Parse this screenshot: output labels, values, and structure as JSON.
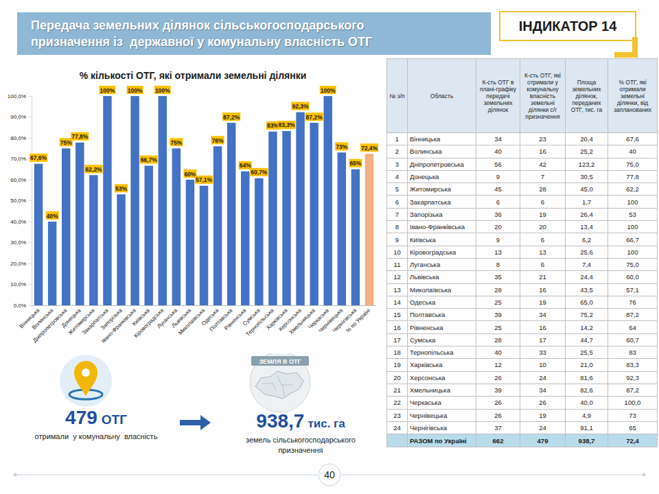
{
  "header": {
    "title": [
      "Передача земельних ділянок сільськогосподарського",
      "призначення із  державної у комунальну власність ОТГ"
    ],
    "indicator": "ІНДИКАТОР 14"
  },
  "chart_data": {
    "type": "bar",
    "title": "% кількості ОТГ, які отримали земельні ділянки",
    "categories": [
      "Вінницька",
      "Волинська",
      "Дніпропетровська",
      "Донецька",
      "Житомирська",
      "Закарпатська",
      "Запорізька",
      "Івано-Франківська",
      "Київська",
      "Кіровоградська",
      "Луганська",
      "Львівська",
      "Миколаївська",
      "Одеська",
      "Полтавська",
      "Рівненська",
      "Сумська",
      "Тернопільська",
      "Харківська",
      "Херсонська",
      "Хмельницька",
      "Черкаська",
      "Чернівецька",
      "Чернігівська",
      "% по Україні"
    ],
    "values": [
      67.6,
      40,
      75,
      77.8,
      62.2,
      100,
      53,
      100,
      66.7,
      100,
      75,
      60,
      57.1,
      76,
      87.2,
      64,
      60.7,
      83,
      83.3,
      92.3,
      87.2,
      100,
      73,
      65,
      72.4
    ],
    "value_labels": [
      "67,6%",
      "40%",
      "75%",
      "77,8%",
      "62,2%",
      "100%",
      "53%",
      "100%",
      "66,7%",
      "100%",
      "75%",
      "60%",
      "57,1%",
      "76%",
      "87,2%",
      "64%",
      "60,7%",
      "83%",
      "83,3%",
      "92,3%",
      "87,2%",
      "100%",
      "73%",
      "65%",
      "72,4%"
    ],
    "colors": [
      "#4472c4",
      "#4472c4",
      "#4472c4",
      "#4472c4",
      "#4472c4",
      "#4472c4",
      "#4472c4",
      "#4472c4",
      "#4472c4",
      "#4472c4",
      "#4472c4",
      "#4472c4",
      "#4472c4",
      "#4472c4",
      "#4472c4",
      "#4472c4",
      "#4472c4",
      "#4472c4",
      "#4472c4",
      "#4472c4",
      "#4472c4",
      "#4472c4",
      "#4472c4",
      "#4472c4",
      "#f4b183"
    ],
    "ylim": [
      0,
      100
    ],
    "yticks": [
      {
        "value": 0,
        "label": "0,0%"
      },
      {
        "value": 10,
        "label": "10,0%"
      },
      {
        "value": 20,
        "label": "20,0%"
      },
      {
        "value": 30,
        "label": "30,0%"
      },
      {
        "value": 40,
        "label": "40,0%"
      },
      {
        "value": 50,
        "label": "50,0%"
      },
      {
        "value": 60,
        "label": "60,0%"
      },
      {
        "value": 70,
        "label": "70,0%"
      },
      {
        "value": 80,
        "label": "80,0%"
      },
      {
        "value": 90,
        "label": "90,0%"
      },
      {
        "value": 100,
        "label": "100,0%"
      }
    ],
    "grid": false,
    "data_labels": true
  },
  "table": {
    "columns": [
      "№ з/п",
      "Область",
      "К-сть ОТГ в плані-графіку передачі земельних ділянок",
      "К-сть ОТГ, які отримали у комунальну власність земельні ділянки с/г призначення",
      "Площа земельних ділянок, переданих ОТГ, тис. га",
      "% ОТГ, які отримали земельні ділянки, від запланованих"
    ],
    "rows": [
      [
        "1",
        "Вінницька",
        "34",
        "23",
        "20,4",
        "67,6"
      ],
      [
        "2",
        "Волинська",
        "40",
        "16",
        "25,2",
        "40"
      ],
      [
        "3",
        "Дніпропетровська",
        "56",
        "42",
        "123,2",
        "75,0"
      ],
      [
        "4",
        "Донецька",
        "9",
        "7",
        "30,5",
        "77,8"
      ],
      [
        "5",
        "Житомирська",
        "45",
        "28",
        "45,0",
        "62,2"
      ],
      [
        "6",
        "Закарпатська",
        "6",
        "6",
        "1,7",
        "100"
      ],
      [
        "7",
        "Запорізька",
        "36",
        "19",
        "26,4",
        "53"
      ],
      [
        "8",
        "Івано-Франківська",
        "20",
        "20",
        "13,4",
        "100"
      ],
      [
        "9",
        "Київська",
        "9",
        "6",
        "6,2",
        "66,7"
      ],
      [
        "10",
        "Кіровоградська",
        "13",
        "13",
        "25,6",
        "100"
      ],
      [
        "11",
        "Луганська",
        "8",
        "6",
        "7,4",
        "75,0"
      ],
      [
        "12",
        "Львівська",
        "35",
        "21",
        "24,4",
        "60,0"
      ],
      [
        "13",
        "Миколаївська",
        "28",
        "16",
        "43,5",
        "57,1"
      ],
      [
        "14",
        "Одеська",
        "25",
        "19",
        "65,0",
        "76"
      ],
      [
        "15",
        "Полтавська",
        "39",
        "34",
        "75,2",
        "87,2"
      ],
      [
        "16",
        "Рівненська",
        "25",
        "16",
        "14,2",
        "64"
      ],
      [
        "17",
        "Сумська",
        "28",
        "17",
        "44,7",
        "60,7"
      ],
      [
        "18",
        "Тернопільська",
        "40",
        "33",
        "25,5",
        "83"
      ],
      [
        "19",
        "Харківська",
        "12",
        "10",
        "21,0",
        "83,3"
      ],
      [
        "20",
        "Херсонська",
        "26",
        "24",
        "81,6",
        "92,3"
      ],
      [
        "21",
        "Хмельницька",
        "39",
        "34",
        "82,6",
        "87,2"
      ],
      [
        "22",
        "Черкаська",
        "26",
        "26",
        "40,0",
        "100,0"
      ],
      [
        "23",
        "Чернівецька",
        "26",
        "19",
        "4,9",
        "73"
      ],
      [
        "24",
        "Чернігівська",
        "37",
        "24",
        "91,1",
        "65"
      ]
    ],
    "total": [
      "РАЗОМ по Україні",
      "662",
      "479",
      "938,7",
      "72,4"
    ]
  },
  "summary": {
    "left": {
      "value": "479",
      "unit": "ОТГ",
      "caption": "отримали  у комунальну  власність"
    },
    "right": {
      "badge": "ЗЕМЛЯ В ОТГ",
      "value": "938,7",
      "unit": "тис. га",
      "caption": [
        "земель сільськогосподарського",
        "призначення"
      ]
    }
  },
  "page_number": "40"
}
